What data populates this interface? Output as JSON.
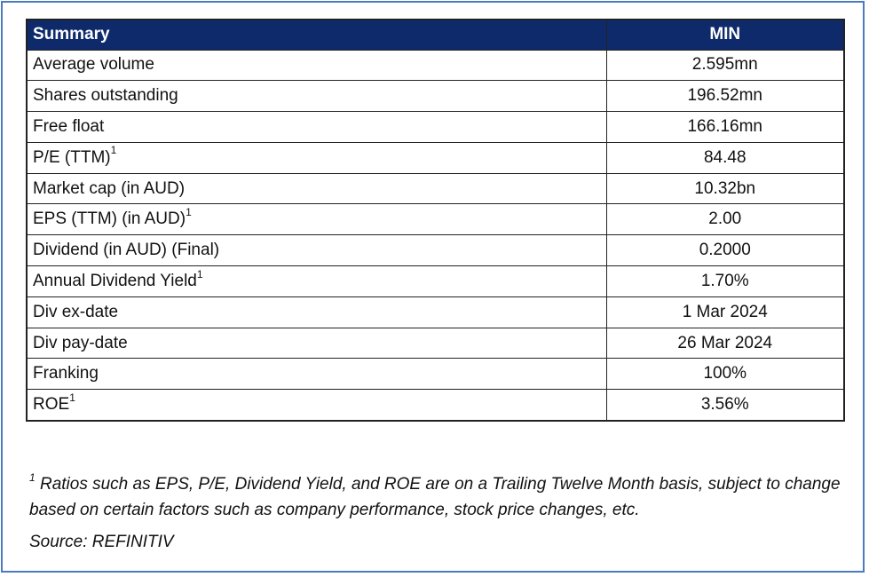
{
  "table": {
    "header": {
      "label": "Summary",
      "value": "MIN"
    },
    "rows": [
      {
        "label": "Average volume",
        "sup": "",
        "value": "2.595mn"
      },
      {
        "label": "Shares outstanding",
        "sup": "",
        "value": "196.52mn"
      },
      {
        "label": "Free float",
        "sup": "",
        "value": "166.16mn"
      },
      {
        "label": "P/E (TTM)",
        "sup": "1",
        "value": "84.48"
      },
      {
        "label": "Market cap (in AUD)",
        "sup": "",
        "value": "10.32bn"
      },
      {
        "label": "EPS (TTM) (in AUD)",
        "sup": "1",
        "value": "2.00"
      },
      {
        "label": "Dividend (in AUD) (Final)",
        "sup": "",
        "value": "0.2000"
      },
      {
        "label": "Annual Dividend Yield",
        "sup": "1",
        "value": "1.70%"
      },
      {
        "label": "Div ex-date",
        "sup": "",
        "value": "1 Mar 2024"
      },
      {
        "label": "Div pay-date",
        "sup": "",
        "value": "26 Mar 2024"
      },
      {
        "label": "Franking",
        "sup": "",
        "value": "100%"
      },
      {
        "label": "ROE",
        "sup": "1",
        "value": "3.56%"
      }
    ]
  },
  "footnote": {
    "marker": "1",
    "text": " Ratios such as EPS, P/E, Dividend Yield, and ROE are on a Trailing Twelve Month basis, subject to change based on certain factors such as company performance, stock price changes, etc."
  },
  "source": "Source: REFINITIV",
  "colors": {
    "header_bg": "#0e2a6a",
    "frame": "#4a7bbf"
  }
}
